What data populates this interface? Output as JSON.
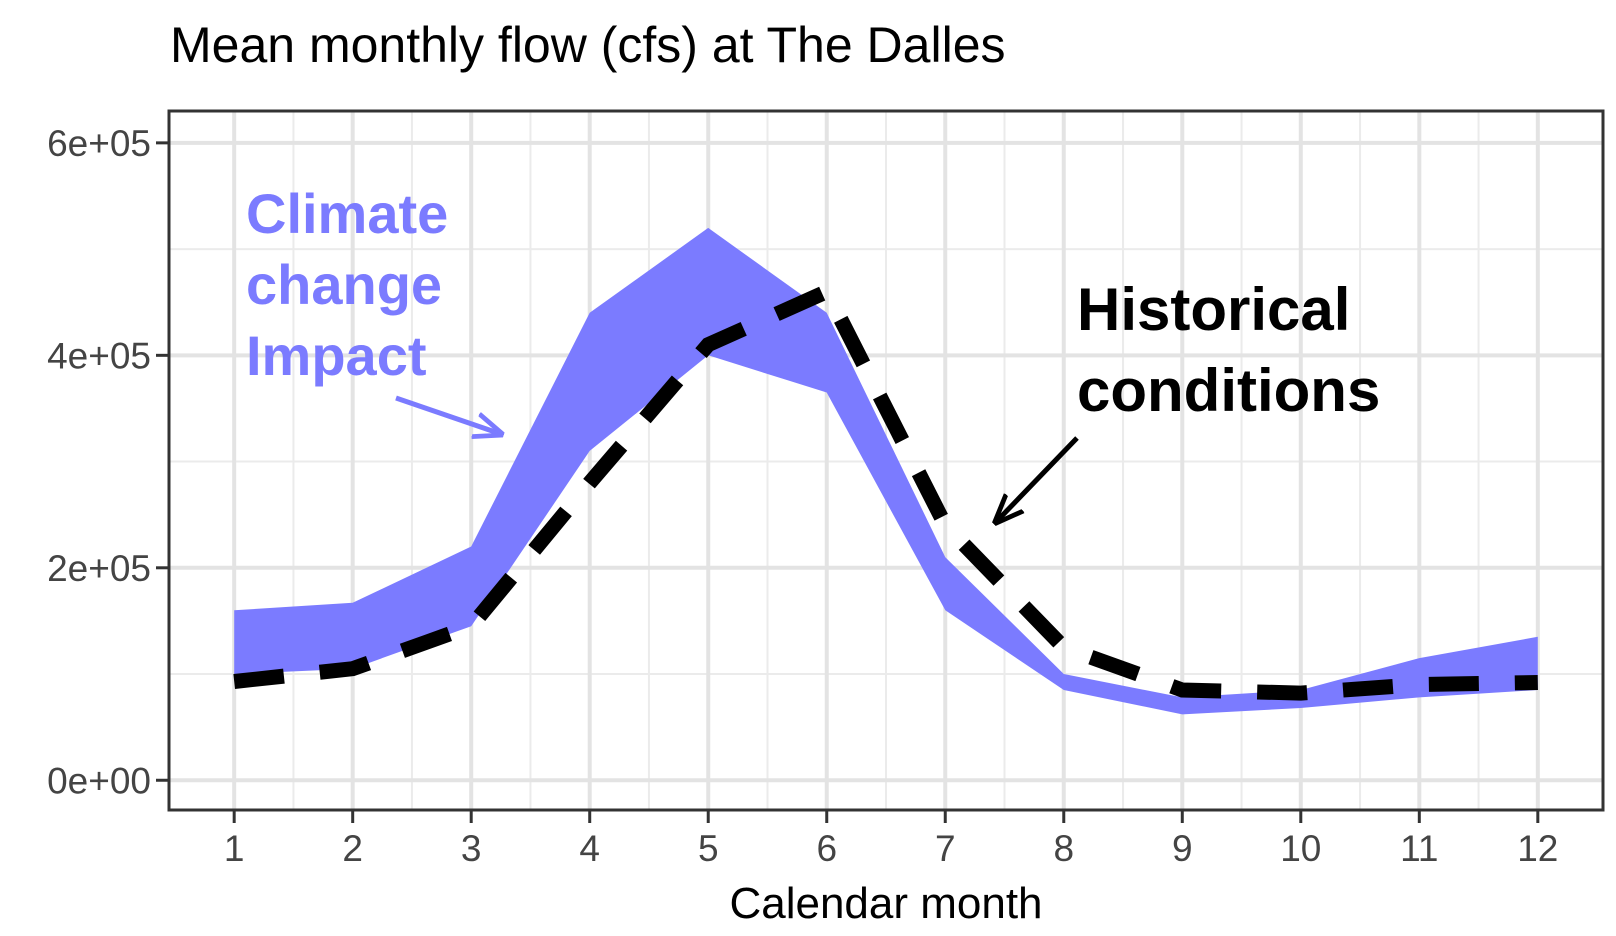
{
  "chart_data": {
    "type": "area",
    "title": "Mean monthly flow (cfs) at The Dalles",
    "xlabel": "Calendar month",
    "ylabel": "",
    "x": [
      1,
      2,
      3,
      4,
      5,
      6,
      7,
      8,
      9,
      10,
      11,
      12
    ],
    "xlim": [
      0.45,
      12.55
    ],
    "ylim": [
      -28000,
      630000
    ],
    "x_ticks": [
      1,
      2,
      3,
      4,
      5,
      6,
      7,
      8,
      9,
      10,
      11,
      12
    ],
    "x_tick_labels": [
      "1",
      "2",
      "3",
      "4",
      "5",
      "6",
      "7",
      "8",
      "9",
      "10",
      "11",
      "12"
    ],
    "y_ticks": [
      0,
      200000,
      400000,
      600000
    ],
    "y_tick_labels": [
      "0e+00",
      "2e+05",
      "4e+05",
      "6e+05"
    ],
    "grid": true,
    "series": [
      {
        "kind": "ribbon",
        "color": "#7b7bff",
        "low": [
          100000,
          105000,
          145000,
          310000,
          400000,
          365000,
          160000,
          85000,
          62000,
          68000,
          78000,
          85000
        ],
        "high": [
          160000,
          167000,
          220000,
          440000,
          520000,
          440000,
          210000,
          100000,
          78000,
          85000,
          115000,
          135000
        ]
      },
      {
        "kind": "dashed-line",
        "color": "#000000",
        "values": [
          93000,
          105000,
          145000,
          280000,
          410000,
          460000,
          240000,
          125000,
          85000,
          82000,
          90000,
          92000
        ]
      }
    ],
    "annotations": {
      "climate_lines": [
        "Climate",
        "change",
        "Impact"
      ],
      "climate_color": "#7b7bff",
      "historical_lines": [
        "Historical",
        "conditions"
      ],
      "historical_color": "#000000"
    }
  }
}
